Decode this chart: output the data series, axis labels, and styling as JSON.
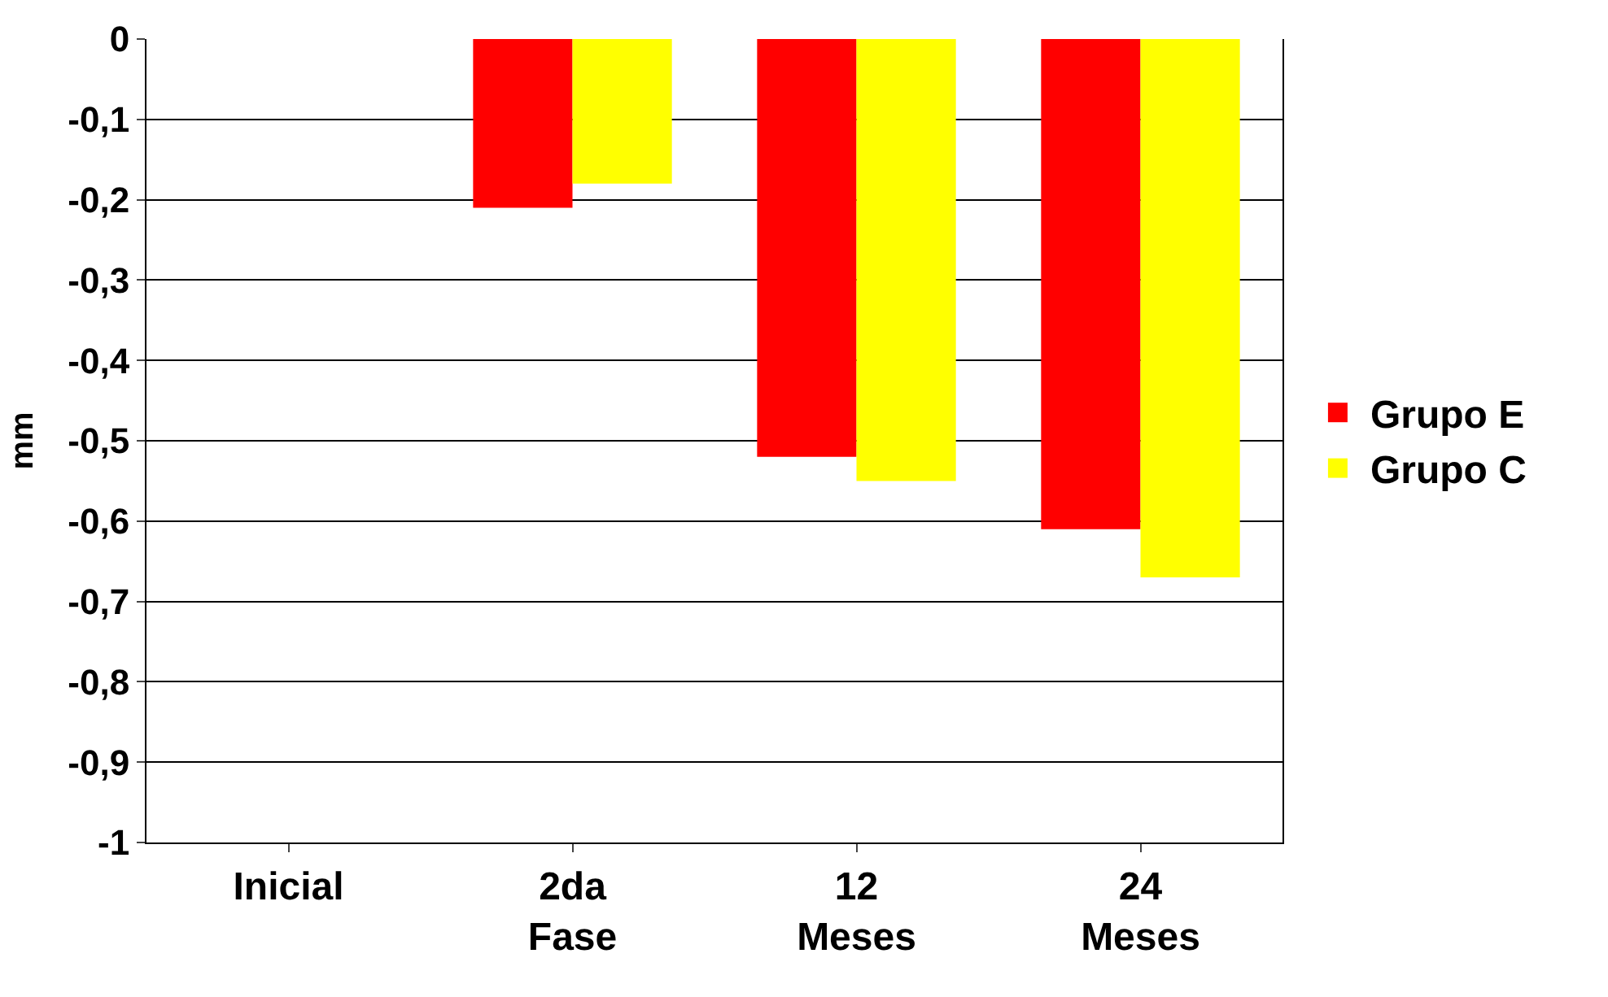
{
  "chart_data": {
    "type": "bar",
    "ylabel": "mm",
    "categories": [
      "Inicial",
      "2da\nFase",
      "12\nMeses",
      "24\nMeses"
    ],
    "series": [
      {
        "name": "Grupo E",
        "color": "#ff0000",
        "values": [
          0,
          -0.21,
          -0.52,
          -0.61
        ]
      },
      {
        "name": "Grupo C",
        "color": "#ffff00",
        "values": [
          0,
          -0.18,
          -0.55,
          -0.67
        ]
      }
    ],
    "ylim": [
      -1,
      0
    ],
    "yticks": [
      {
        "value": 0,
        "label": "0"
      },
      {
        "value": -0.1,
        "label": "-0,1"
      },
      {
        "value": -0.2,
        "label": "-0,2"
      },
      {
        "value": -0.3,
        "label": "-0,3"
      },
      {
        "value": -0.4,
        "label": "-0,4"
      },
      {
        "value": -0.5,
        "label": "-0,5"
      },
      {
        "value": -0.6,
        "label": "-0,6"
      },
      {
        "value": -0.7,
        "label": "-0,7"
      },
      {
        "value": -0.8,
        "label": "-0,8"
      },
      {
        "value": -0.9,
        "label": "-0,9"
      },
      {
        "value": -1,
        "label": "-1"
      }
    ],
    "grid": "y",
    "legend": "right"
  }
}
